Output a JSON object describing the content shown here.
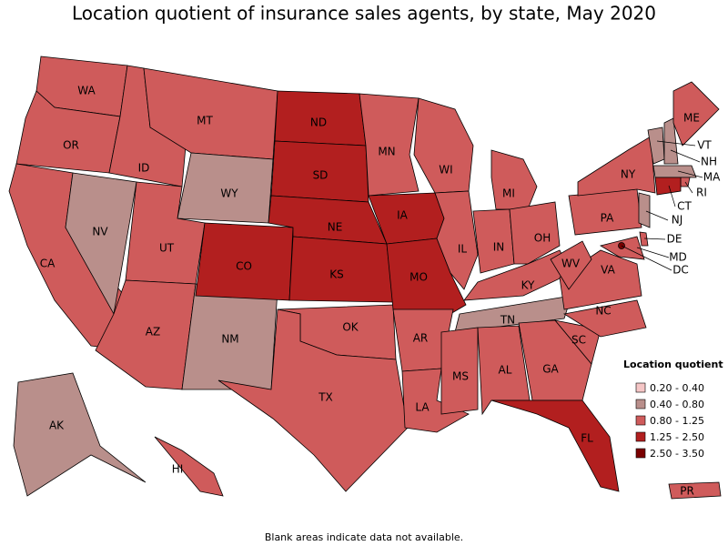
{
  "title": "Location quotient of insurance sales agents, by state, May 2020",
  "note": "Blank areas indicate data not available.",
  "legend": {
    "title": "Location quotient",
    "items": [
      {
        "label": "0.20 - 0.40",
        "color": "#f5c6c6"
      },
      {
        "label": "0.40 - 0.80",
        "color": "#b98f8b"
      },
      {
        "label": "0.80 - 1.25",
        "color": "#cf5b5b"
      },
      {
        "label": "1.25 - 2.50",
        "color": "#b21f1f"
      },
      {
        "label": "2.50 - 3.50",
        "color": "#7a0000"
      }
    ]
  },
  "regions": [
    {
      "label": "WA",
      "class": 2
    },
    {
      "label": "OR",
      "class": 2
    },
    {
      "label": "CA",
      "class": 2
    },
    {
      "label": "NV",
      "class": 1
    },
    {
      "label": "ID",
      "class": 2
    },
    {
      "label": "MT",
      "class": 2
    },
    {
      "label": "WY",
      "class": 1
    },
    {
      "label": "UT",
      "class": 2
    },
    {
      "label": "AZ",
      "class": 2
    },
    {
      "label": "NM",
      "class": 1
    },
    {
      "label": "CO",
      "class": 3
    },
    {
      "label": "ND",
      "class": 3
    },
    {
      "label": "SD",
      "class": 3
    },
    {
      "label": "NE",
      "class": 3
    },
    {
      "label": "KS",
      "class": 3
    },
    {
      "label": "OK",
      "class": 2
    },
    {
      "label": "TX",
      "class": 2
    },
    {
      "label": "MN",
      "class": 2
    },
    {
      "label": "IA",
      "class": 3
    },
    {
      "label": "MO",
      "class": 3
    },
    {
      "label": "AR",
      "class": 2
    },
    {
      "label": "LA",
      "class": 2
    },
    {
      "label": "WI",
      "class": 2
    },
    {
      "label": "IL",
      "class": 2
    },
    {
      "label": "MI",
      "class": 2
    },
    {
      "label": "IN",
      "class": 2
    },
    {
      "label": "OH",
      "class": 2
    },
    {
      "label": "KY",
      "class": 2
    },
    {
      "label": "TN",
      "class": 1
    },
    {
      "label": "MS",
      "class": 2
    },
    {
      "label": "AL",
      "class": 2
    },
    {
      "label": "GA",
      "class": 2
    },
    {
      "label": "FL",
      "class": 3
    },
    {
      "label": "SC",
      "class": 2
    },
    {
      "label": "NC",
      "class": 2
    },
    {
      "label": "VA",
      "class": 2
    },
    {
      "label": "WV",
      "class": 2
    },
    {
      "label": "PA",
      "class": 2
    },
    {
      "label": "NY",
      "class": 2
    },
    {
      "label": "VT",
      "class": 1
    },
    {
      "label": "NH",
      "class": 1
    },
    {
      "label": "ME",
      "class": 2
    },
    {
      "label": "MA",
      "class": 1
    },
    {
      "label": "RI",
      "class": 2
    },
    {
      "label": "CT",
      "class": 3
    },
    {
      "label": "NJ",
      "class": 1
    },
    {
      "label": "DE",
      "class": 2
    },
    {
      "label": "MD",
      "class": 2
    },
    {
      "label": "DC",
      "class": 4
    },
    {
      "label": "AK",
      "class": 1
    },
    {
      "label": "HI",
      "class": 2
    },
    {
      "label": "PR",
      "class": 2
    }
  ]
}
